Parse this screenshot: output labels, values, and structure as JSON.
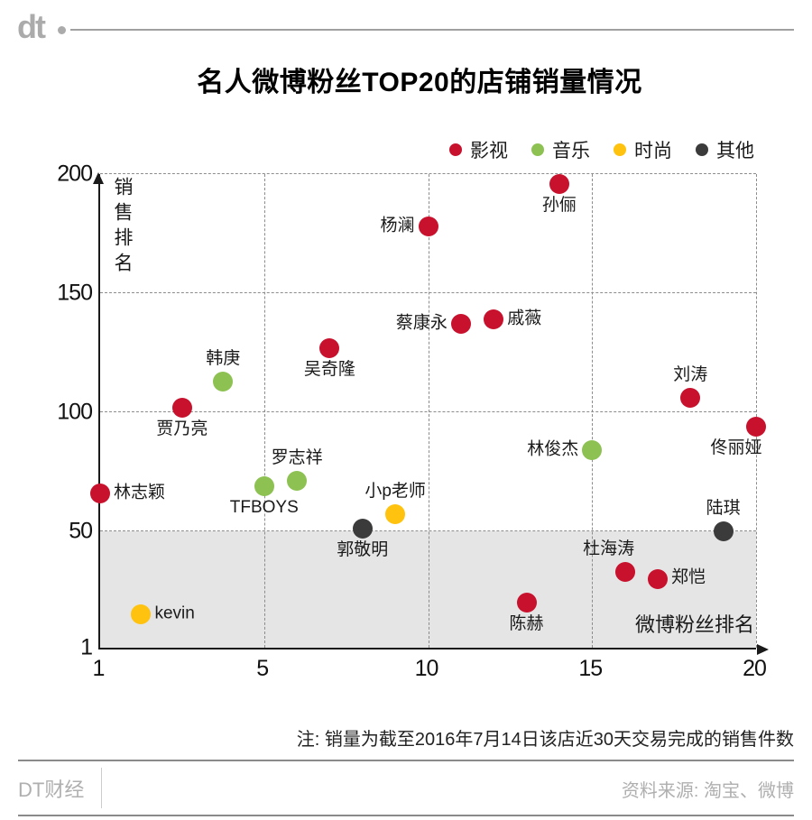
{
  "header": {
    "logo_text": "dt"
  },
  "title": "名人微博粉丝TOP20的店铺销量情况",
  "legend": [
    {
      "label": "影视",
      "color": "#c8112d"
    },
    {
      "label": "音乐",
      "color": "#8dc152"
    },
    {
      "label": "时尚",
      "color": "#ffc20e"
    },
    {
      "label": "其他",
      "color": "#3b3b3b"
    }
  ],
  "chart_data": {
    "type": "scatter",
    "title": "名人微博粉丝TOP20的店铺销量情况",
    "xlabel": "微博粉丝排名",
    "ylabel": "销售排名",
    "xlim": [
      1,
      20
    ],
    "ylim": [
      1,
      200
    ],
    "x_ticks": [
      1,
      5,
      10,
      15,
      20
    ],
    "y_ticks": [
      1,
      50,
      100,
      150,
      200
    ],
    "grid": "dashed",
    "legend_position": "top-right",
    "shaded_region": {
      "y_min": 1,
      "y_max": 50,
      "color": "#e5e5e5"
    },
    "points": [
      {
        "name": "林志颖",
        "x": 1,
        "y": 66,
        "category": "影视",
        "label_pos": "right"
      },
      {
        "name": "kevin",
        "x": 2,
        "y": 15,
        "category": "时尚",
        "label_pos": "right"
      },
      {
        "name": "贾乃亮",
        "x": 3,
        "y": 102,
        "category": "影视",
        "label_pos": "bottom"
      },
      {
        "name": "韩庚",
        "x": 4,
        "y": 113,
        "category": "音乐",
        "label_pos": "top"
      },
      {
        "name": "TFBOYS",
        "x": 5,
        "y": 69,
        "category": "音乐",
        "label_pos": "bottom"
      },
      {
        "name": "罗志祥",
        "x": 6,
        "y": 71,
        "category": "音乐",
        "label_pos": "top"
      },
      {
        "name": "吴奇隆",
        "x": 7,
        "y": 127,
        "category": "影视",
        "label_pos": "bottom"
      },
      {
        "name": "郭敬明",
        "x": 8,
        "y": 51,
        "category": "其他",
        "label_pos": "bottom"
      },
      {
        "name": "小p老师",
        "x": 9,
        "y": 57,
        "category": "时尚",
        "label_pos": "top"
      },
      {
        "name": "杨澜",
        "x": 10,
        "y": 178,
        "category": "影视",
        "label_pos": "left"
      },
      {
        "name": "蔡康永",
        "x": 11,
        "y": 137,
        "category": "影视",
        "label_pos": "left"
      },
      {
        "name": "戚薇",
        "x": 12,
        "y": 139,
        "category": "影视",
        "label_pos": "right"
      },
      {
        "name": "陈赫",
        "x": 13,
        "y": 20,
        "category": "影视",
        "label_pos": "bottom"
      },
      {
        "name": "孙俪",
        "x": 14,
        "y": 196,
        "category": "影视",
        "label_pos": "bottom"
      },
      {
        "name": "林俊杰",
        "x": 15,
        "y": 84,
        "category": "音乐",
        "label_pos": "left"
      },
      {
        "name": "杜海涛",
        "x": 16,
        "y": 33,
        "category": "影视",
        "label_pos": "top-left"
      },
      {
        "name": "郑恺",
        "x": 17,
        "y": 30,
        "category": "影视",
        "label_pos": "right"
      },
      {
        "name": "刘涛",
        "x": 18,
        "y": 106,
        "category": "影视",
        "label_pos": "top"
      },
      {
        "name": "陆琪",
        "x": 19,
        "y": 50,
        "category": "其他",
        "label_pos": "top"
      },
      {
        "name": "佟丽娅",
        "x": 20,
        "y": 94,
        "category": "影视",
        "label_pos": "bottom-left"
      }
    ]
  },
  "note": "注: 销量为截至2016年7月14日该店近30天交易完成的销售件数",
  "footer": {
    "brand": "DT财经",
    "source": "资料来源: 淘宝、微博"
  }
}
